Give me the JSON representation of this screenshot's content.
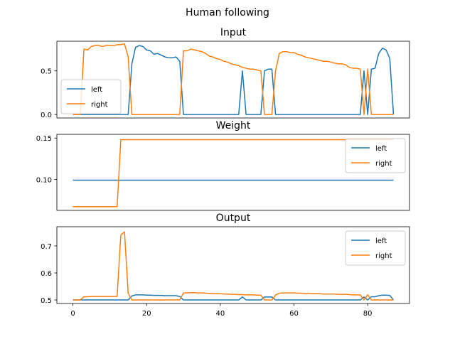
{
  "suptitle": "Human following",
  "colors": {
    "left": "#1f77b4",
    "right": "#ff7f0e"
  },
  "chart_data": [
    {
      "type": "line",
      "title": "Input",
      "xlim": [
        -4.35,
        91.35
      ],
      "ylim": [
        -0.04,
        0.84
      ],
      "yticks": [
        0.0,
        0.5
      ],
      "ytick_labels": [
        "0.0",
        "0.5"
      ],
      "xticks": [],
      "xtick_labels": [],
      "legend": {
        "placement": "lower-left",
        "entries": [
          "left",
          "right"
        ]
      },
      "series": [
        {
          "name": "left",
          "color": "#1f77b4",
          "points": [
            [
              0,
              0
            ],
            [
              15,
              0
            ],
            [
              16,
              0.58
            ],
            [
              17,
              0.77
            ],
            [
              18,
              0.79
            ],
            [
              19,
              0.78
            ],
            [
              20,
              0.74
            ],
            [
              21,
              0.73
            ],
            [
              22,
              0.69
            ],
            [
              23,
              0.7
            ],
            [
              24,
              0.68
            ],
            [
              25,
              0.66
            ],
            [
              26,
              0.65
            ],
            [
              27,
              0.65
            ],
            [
              28,
              0.66
            ],
            [
              29,
              0.61
            ],
            [
              30,
              0
            ],
            [
              45,
              0
            ],
            [
              46,
              0.5
            ],
            [
              47,
              0
            ],
            [
              51,
              0
            ],
            [
              52,
              0.5
            ],
            [
              53,
              0.52
            ],
            [
              54,
              0.52
            ],
            [
              55,
              0
            ],
            [
              78,
              0
            ],
            [
              79,
              0.5
            ],
            [
              80,
              0
            ],
            [
              81,
              0.52
            ],
            [
              82,
              0.53
            ],
            [
              83,
              0.7
            ],
            [
              84,
              0.76
            ],
            [
              85,
              0.74
            ],
            [
              86,
              0.64
            ],
            [
              87,
              0
            ]
          ]
        },
        {
          "name": "right",
          "color": "#ff7f0e",
          "points": [
            [
              0,
              0
            ],
            [
              2,
              0
            ],
            [
              3,
              0.75
            ],
            [
              4,
              0.74
            ],
            [
              5,
              0.78
            ],
            [
              6,
              0.79
            ],
            [
              7,
              0.79
            ],
            [
              8,
              0.78
            ],
            [
              9,
              0.79
            ],
            [
              10,
              0.79
            ],
            [
              11,
              0.79
            ],
            [
              12,
              0.8
            ],
            [
              13,
              0.8
            ],
            [
              14,
              0.81
            ],
            [
              15,
              0.66
            ],
            [
              16,
              0
            ],
            [
              29,
              0
            ],
            [
              30,
              0.73
            ],
            [
              31,
              0.73
            ],
            [
              32,
              0.75
            ],
            [
              33,
              0.74
            ],
            [
              34,
              0.73
            ],
            [
              35,
              0.72
            ],
            [
              36,
              0.7
            ],
            [
              37,
              0.67
            ],
            [
              38,
              0.66
            ],
            [
              39,
              0.64
            ],
            [
              40,
              0.63
            ],
            [
              41,
              0.61
            ],
            [
              42,
              0.6
            ],
            [
              43,
              0.58
            ],
            [
              44,
              0.57
            ],
            [
              45,
              0.56
            ],
            [
              46,
              0.54
            ],
            [
              47,
              0.53
            ],
            [
              48,
              0.52
            ],
            [
              49,
              0.52
            ],
            [
              50,
              0.51
            ],
            [
              51,
              0.5
            ],
            [
              52,
              0
            ],
            [
              54,
              0
            ],
            [
              55,
              0.5
            ],
            [
              56,
              0.7
            ],
            [
              57,
              0.72
            ],
            [
              58,
              0.72
            ],
            [
              59,
              0.71
            ],
            [
              60,
              0.71
            ],
            [
              61,
              0.69
            ],
            [
              62,
              0.68
            ],
            [
              63,
              0.66
            ],
            [
              64,
              0.65
            ],
            [
              65,
              0.64
            ],
            [
              66,
              0.63
            ],
            [
              67,
              0.62
            ],
            [
              68,
              0.61
            ],
            [
              69,
              0.61
            ],
            [
              70,
              0.6
            ],
            [
              71,
              0.59
            ],
            [
              72,
              0.58
            ],
            [
              73,
              0.58
            ],
            [
              74,
              0.57
            ],
            [
              75,
              0.54
            ],
            [
              76,
              0.53
            ],
            [
              77,
              0.53
            ],
            [
              78,
              0.52
            ],
            [
              79,
              0
            ],
            [
              80,
              0.52
            ],
            [
              81,
              0
            ],
            [
              87,
              0
            ]
          ]
        }
      ]
    },
    {
      "type": "line",
      "title": "Weight",
      "xlim": [
        -4.35,
        91.35
      ],
      "ylim": [
        0.0625,
        0.1545
      ],
      "yticks": [
        0.1,
        0.15
      ],
      "ytick_labels": [
        "0.10",
        "0.15"
      ],
      "xticks": [],
      "xtick_labels": [],
      "legend": {
        "placement": "upper-right",
        "entries": [
          "left",
          "right"
        ]
      },
      "series": [
        {
          "name": "left",
          "color": "#1f77b4",
          "points": [
            [
              0,
              0.099
            ],
            [
              87,
              0.099
            ]
          ]
        },
        {
          "name": "right",
          "color": "#ff7f0e",
          "points": [
            [
              0,
              0.067
            ],
            [
              12,
              0.067
            ],
            [
              13,
              0.148
            ],
            [
              87,
              0.148
            ]
          ]
        }
      ]
    },
    {
      "type": "line",
      "title": "Output",
      "xlim": [
        -4.35,
        91.35
      ],
      "ylim": [
        0.487,
        0.771
      ],
      "yticks": [
        0.5,
        0.6,
        0.7
      ],
      "ytick_labels": [
        "0.5",
        "0.6",
        "0.7"
      ],
      "xticks": [
        0,
        20,
        40,
        60,
        80
      ],
      "xtick_labels": [
        "0",
        "20",
        "40",
        "60",
        "80"
      ],
      "legend": {
        "placement": "upper-right",
        "entries": [
          "left",
          "right"
        ]
      },
      "series": [
        {
          "name": "left",
          "color": "#1f77b4",
          "points": [
            [
              0,
              0.5
            ],
            [
              15,
              0.5
            ],
            [
              16,
              0.515
            ],
            [
              17,
              0.519
            ],
            [
              18,
              0.519
            ],
            [
              19,
              0.519
            ],
            [
              20,
              0.518
            ],
            [
              21,
              0.518
            ],
            [
              22,
              0.517
            ],
            [
              23,
              0.517
            ],
            [
              24,
              0.517
            ],
            [
              25,
              0.516
            ],
            [
              26,
              0.516
            ],
            [
              27,
              0.516
            ],
            [
              28,
              0.516
            ],
            [
              29,
              0.513
            ],
            [
              30,
              0.5
            ],
            [
              45,
              0.5
            ],
            [
              46,
              0.511
            ],
            [
              47,
              0.5
            ],
            [
              51,
              0.5
            ],
            [
              52,
              0.511
            ],
            [
              53,
              0.511
            ],
            [
              54,
              0.511
            ],
            [
              55,
              0.5
            ],
            [
              78,
              0.5
            ],
            [
              79,
              0.511
            ],
            [
              80,
              0.5
            ],
            [
              81,
              0.512
            ],
            [
              82,
              0.512
            ],
            [
              83,
              0.516
            ],
            [
              84,
              0.518
            ],
            [
              85,
              0.518
            ],
            [
              86,
              0.517
            ],
            [
              87,
              0.5
            ]
          ]
        },
        {
          "name": "right",
          "color": "#ff7f0e",
          "points": [
            [
              0,
              0.5
            ],
            [
              2,
              0.5
            ],
            [
              3,
              0.512
            ],
            [
              4,
              0.512
            ],
            [
              5,
              0.513
            ],
            [
              6,
              0.513
            ],
            [
              7,
              0.513
            ],
            [
              8,
              0.513
            ],
            [
              9,
              0.513
            ],
            [
              10,
              0.513
            ],
            [
              11,
              0.513
            ],
            [
              12,
              0.513
            ],
            [
              13,
              0.74
            ],
            [
              14,
              0.752
            ],
            [
              15,
              0.525
            ],
            [
              16,
              0.5
            ],
            [
              29,
              0.5
            ],
            [
              30,
              0.526
            ],
            [
              31,
              0.526
            ],
            [
              32,
              0.527
            ],
            [
              33,
              0.527
            ],
            [
              34,
              0.526
            ],
            [
              35,
              0.526
            ],
            [
              36,
              0.525
            ],
            [
              37,
              0.524
            ],
            [
              38,
              0.524
            ],
            [
              39,
              0.523
            ],
            [
              40,
              0.523
            ],
            [
              41,
              0.522
            ],
            [
              42,
              0.522
            ],
            [
              43,
              0.521
            ],
            [
              44,
              0.521
            ],
            [
              45,
              0.52
            ],
            [
              46,
              0.52
            ],
            [
              47,
              0.519
            ],
            [
              48,
              0.519
            ],
            [
              49,
              0.519
            ],
            [
              50,
              0.518
            ],
            [
              51,
              0.518
            ],
            [
              52,
              0.5
            ],
            [
              54,
              0.5
            ],
            [
              55,
              0.518
            ],
            [
              56,
              0.525
            ],
            [
              57,
              0.526
            ],
            [
              58,
              0.526
            ],
            [
              59,
              0.526
            ],
            [
              60,
              0.526
            ],
            [
              61,
              0.525
            ],
            [
              62,
              0.525
            ],
            [
              63,
              0.524
            ],
            [
              64,
              0.524
            ],
            [
              65,
              0.523
            ],
            [
              66,
              0.523
            ],
            [
              67,
              0.523
            ],
            [
              68,
              0.522
            ],
            [
              69,
              0.522
            ],
            [
              70,
              0.522
            ],
            [
              71,
              0.522
            ],
            [
              72,
              0.521
            ],
            [
              73,
              0.521
            ],
            [
              74,
              0.521
            ],
            [
              75,
              0.52
            ],
            [
              76,
              0.519
            ],
            [
              77,
              0.519
            ],
            [
              78,
              0.519
            ],
            [
              79,
              0.5
            ],
            [
              80,
              0.519
            ],
            [
              81,
              0.5
            ],
            [
              87,
              0.5
            ]
          ]
        }
      ]
    }
  ]
}
